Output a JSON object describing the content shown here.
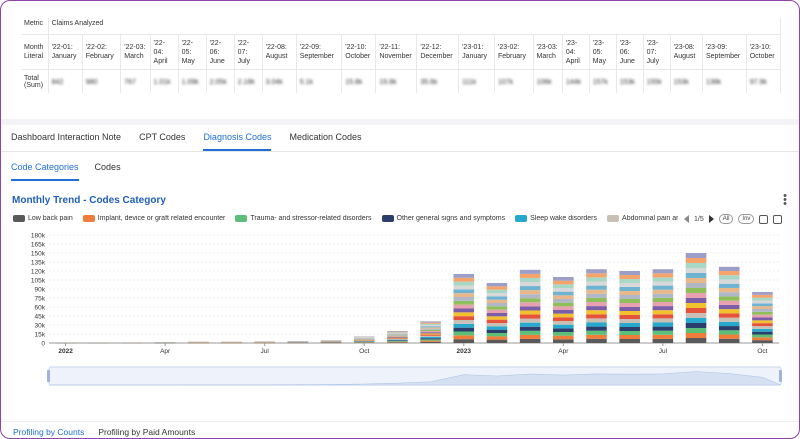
{
  "table": {
    "metric_label": "Metric",
    "metric_value": "Claims Analyzed",
    "month_label": "Month Literal",
    "total_label": "Total (Sum)",
    "months": [
      "'22-01: January",
      "'22-02: February",
      "'22-03: March",
      "'22-04: April",
      "'22-05: May",
      "'22-06: June",
      "'22-07: July",
      "'22-08: August",
      "'22-09: September",
      "'22-10: October",
      "'22-11: November",
      "'22-12: December",
      "'23-01: January",
      "'23-02: February",
      "'23-03: March",
      "'23-04: April",
      "'23-05: May",
      "'23-06: June",
      "'23-07: July",
      "'23-08: August",
      "'23-09: September",
      "'23-10: October"
    ],
    "totals": [
      "842",
      "980",
      "767",
      "1.01k",
      "1.09k",
      "2.05k",
      "2.18k",
      "3.04k",
      "5.1k",
      "15.8k",
      "19.8k",
      "35.6k",
      "111k",
      "107k",
      "106k",
      "144k",
      "157k",
      "153k",
      "155k",
      "153k",
      "138k",
      "97.9k"
    ]
  },
  "tabs": [
    {
      "label": "Dashboard Interaction Note",
      "active": false
    },
    {
      "label": "CPT Codes",
      "active": false
    },
    {
      "label": "Diagnosis Codes",
      "active": true
    },
    {
      "label": "Medication Codes",
      "active": false
    }
  ],
  "subtabs": [
    {
      "label": "Code Categories",
      "active": true
    },
    {
      "label": "Codes",
      "active": false
    }
  ],
  "chart_header": {
    "title": "Monthly Trend  - Codes Category",
    "page_indicator": "1/5",
    "all_label": "All",
    "inv_label": "Inv"
  },
  "legend": [
    {
      "name": "Low back pain",
      "color": "#5a5a5a"
    },
    {
      "name": "Implant, device or graft related encounter",
      "color": "#f07c3a"
    },
    {
      "name": "Trauma- and stressor-related disorders",
      "color": "#5cbf78"
    },
    {
      "name": "Other general signs and symptoms",
      "color": "#2c3e6b"
    },
    {
      "name": "Sleep wake disorders",
      "color": "#27a9cf"
    },
    {
      "name": "Abdominal pain and other c",
      "color": "#c9bfb4"
    }
  ],
  "chart_data": {
    "type": "bar",
    "stacked": true,
    "categories": [
      "2022-01",
      "2022-02",
      "2022-03",
      "2022-04",
      "2022-05",
      "2022-06",
      "2022-07",
      "2022-08",
      "2022-09",
      "2022-10",
      "2022-11",
      "2022-12",
      "2023-01",
      "2023-02",
      "2023-03",
      "2023-04",
      "2023-05",
      "2023-06",
      "2023-07",
      "2023-08",
      "2023-09",
      "2023-10"
    ],
    "values": [
      1000,
      1000,
      1000,
      1500,
      2000,
      2000,
      2500,
      3000,
      4500,
      11000,
      20000,
      36000,
      115000,
      100000,
      122000,
      110000,
      123000,
      120000,
      123000,
      150000,
      127000,
      85000
    ],
    "x_tick_labels": [
      "2022",
      "Apr",
      "Jul",
      "Oct",
      "2023",
      "Apr",
      "Jul",
      "Oct"
    ],
    "x_tick_positions": [
      0,
      3,
      6,
      9,
      12,
      15,
      18,
      21
    ],
    "y_ticks": [
      "0",
      "15k",
      "30k",
      "45k",
      "60k",
      "75k",
      "90k",
      "105k",
      "120k",
      "135k",
      "150k",
      "165k",
      "180k"
    ],
    "ylim": [
      0,
      180000
    ],
    "grid": true,
    "segment_colors": [
      "#5a5a5a",
      "#f07c3a",
      "#5cbf78",
      "#2c3e6b",
      "#27a9cf",
      "#c9bfb4",
      "#e5533d",
      "#f2c12e",
      "#7b5ea7",
      "#e8a1b0",
      "#8fbf5a",
      "#b0b8c8",
      "#e8b88a",
      "#6fb3d2",
      "#d8d8d8",
      "#a7d7c5",
      "#f4a36b",
      "#9c9ec8"
    ]
  },
  "profiling_tabs": [
    {
      "label": "Profiling by Counts",
      "active": true
    },
    {
      "label": "Profiling by Paid Amounts",
      "active": false
    }
  ]
}
